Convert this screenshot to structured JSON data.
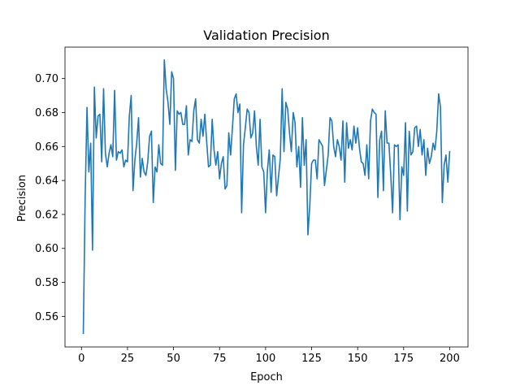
{
  "chart_data": {
    "type": "line",
    "title": "Validation Precision",
    "xlabel": "Epoch",
    "ylabel": "Precision",
    "xlim": [
      -8.95,
      209.95
    ],
    "ylim": [
      0.542,
      0.7185
    ],
    "xticks": [
      0,
      25,
      50,
      75,
      100,
      125,
      150,
      175,
      200
    ],
    "yticks": [
      0.56,
      0.58,
      0.6,
      0.62,
      0.64,
      0.66,
      0.68,
      0.7
    ],
    "ytick_labels": [
      "0.56",
      "0.58",
      "0.60",
      "0.62",
      "0.64",
      "0.66",
      "0.68",
      "0.70"
    ],
    "grid": false,
    "series": [
      {
        "color": "#1f77b4",
        "x": [
          1,
          2,
          3,
          4,
          5,
          6,
          7,
          8,
          9,
          10,
          11,
          12,
          13,
          14,
          15,
          16,
          17,
          18,
          19,
          20,
          21,
          22,
          23,
          24,
          25,
          26,
          27,
          28,
          29,
          30,
          31,
          32,
          33,
          34,
          35,
          36,
          37,
          38,
          39,
          40,
          41,
          42,
          43,
          44,
          45,
          46,
          47,
          48,
          49,
          50,
          51,
          52,
          53,
          54,
          55,
          56,
          57,
          58,
          59,
          60,
          61,
          62,
          63,
          64,
          65,
          66,
          67,
          68,
          69,
          70,
          71,
          72,
          73,
          74,
          75,
          76,
          77,
          78,
          79,
          80,
          81,
          82,
          83,
          84,
          85,
          86,
          87,
          88,
          89,
          90,
          91,
          92,
          93,
          94,
          95,
          96,
          97,
          98,
          99,
          100,
          101,
          102,
          103,
          104,
          105,
          106,
          107,
          108,
          109,
          110,
          111,
          112,
          113,
          114,
          115,
          116,
          117,
          118,
          119,
          120,
          121,
          122,
          123,
          124,
          125,
          126,
          127,
          128,
          129,
          130,
          131,
          132,
          133,
          134,
          135,
          136,
          137,
          138,
          139,
          140,
          141,
          142,
          143,
          144,
          145,
          146,
          147,
          148,
          149,
          150,
          151,
          152,
          153,
          154,
          155,
          156,
          157,
          158,
          159,
          160,
          161,
          162,
          163,
          164,
          165,
          166,
          167,
          168,
          169,
          170,
          171,
          172,
          173,
          174,
          175,
          176,
          177,
          178,
          179,
          180,
          181,
          182,
          183,
          184,
          185,
          186,
          187,
          188,
          189,
          190,
          191,
          192,
          193,
          194,
          195,
          196,
          197,
          198,
          199,
          200
        ],
        "values": [
          0.55,
          0.63,
          0.683,
          0.645,
          0.662,
          0.599,
          0.695,
          0.665,
          0.678,
          0.679,
          0.651,
          0.694,
          0.656,
          0.648,
          0.656,
          0.661,
          0.654,
          0.693,
          0.652,
          0.657,
          0.656,
          0.658,
          0.648,
          0.652,
          0.651,
          0.678,
          0.69,
          0.634,
          0.652,
          0.662,
          0.677,
          0.642,
          0.653,
          0.645,
          0.643,
          0.651,
          0.666,
          0.669,
          0.627,
          0.648,
          0.645,
          0.661,
          0.65,
          0.649,
          0.711,
          0.694,
          0.686,
          0.673,
          0.704,
          0.7,
          0.646,
          0.681,
          0.679,
          0.68,
          0.673,
          0.673,
          0.684,
          0.655,
          0.664,
          0.663,
          0.681,
          0.688,
          0.664,
          0.662,
          0.676,
          0.666,
          0.679,
          0.663,
          0.648,
          0.649,
          0.676,
          0.658,
          0.649,
          0.657,
          0.641,
          0.65,
          0.654,
          0.635,
          0.637,
          0.668,
          0.655,
          0.671,
          0.688,
          0.691,
          0.68,
          0.685,
          0.621,
          0.661,
          0.671,
          0.682,
          0.68,
          0.665,
          0.668,
          0.681,
          0.66,
          0.649,
          0.676,
          0.648,
          0.645,
          0.621,
          0.646,
          0.658,
          0.633,
          0.655,
          0.654,
          0.631,
          0.642,
          0.653,
          0.694,
          0.657,
          0.686,
          0.682,
          0.668,
          0.657,
          0.68,
          0.674,
          0.648,
          0.66,
          0.636,
          0.677,
          0.649,
          0.664,
          0.608,
          0.625,
          0.65,
          0.652,
          0.652,
          0.641,
          0.664,
          0.662,
          0.66,
          0.637,
          0.646,
          0.655,
          0.677,
          0.675,
          0.66,
          0.654,
          0.664,
          0.66,
          0.652,
          0.675,
          0.639,
          0.674,
          0.659,
          0.664,
          0.658,
          0.672,
          0.662,
          0.671,
          0.659,
          0.651,
          0.65,
          0.643,
          0.661,
          0.641,
          0.675,
          0.682,
          0.68,
          0.679,
          0.63,
          0.664,
          0.669,
          0.634,
          0.681,
          0.662,
          0.662,
          0.643,
          0.621,
          0.661,
          0.66,
          0.661,
          0.617,
          0.648,
          0.643,
          0.674,
          0.622,
          0.669,
          0.655,
          0.657,
          0.671,
          0.672,
          0.66,
          0.67,
          0.655,
          0.664,
          0.643,
          0.659,
          0.65,
          0.654,
          0.662,
          0.658,
          0.669,
          0.691,
          0.683,
          0.627,
          0.649,
          0.655,
          0.639,
          0.657
        ]
      }
    ]
  }
}
